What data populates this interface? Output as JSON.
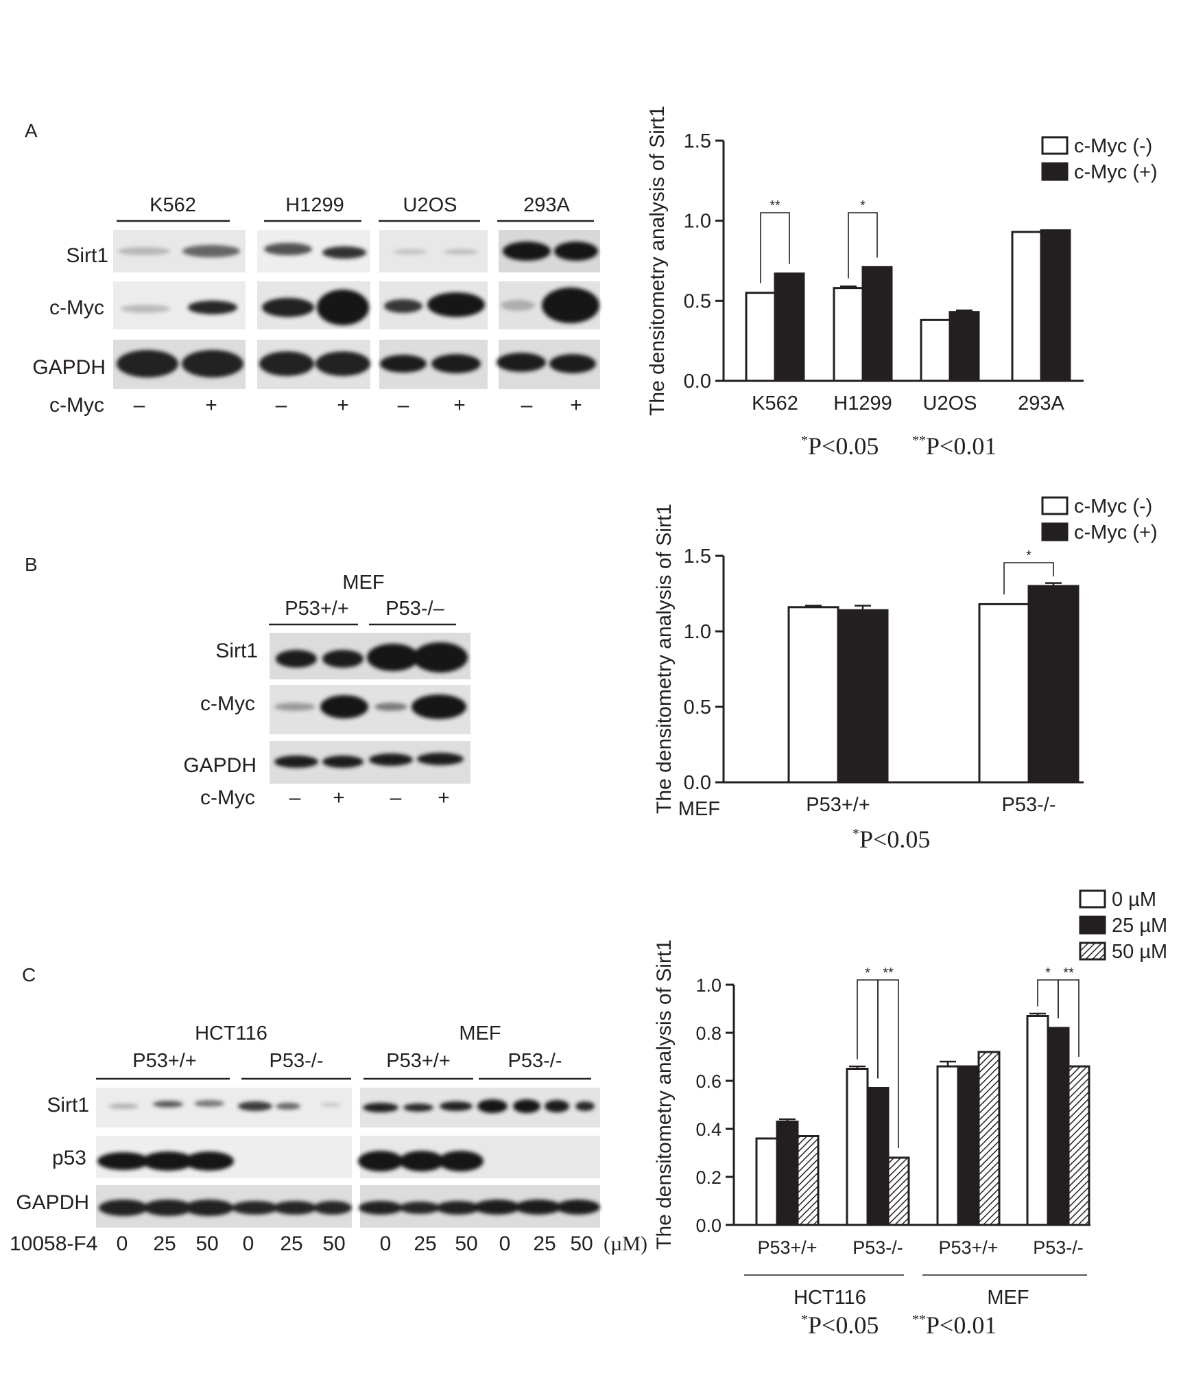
{
  "figure": {
    "panels": [
      {
        "label": "A",
        "blot": {
          "groups": [
            "K562",
            "H1299",
            "U2OS",
            "293A"
          ],
          "rows": [
            "Sirt1",
            "c-Myc",
            "GAPDH"
          ],
          "treatment_label": "c-Myc",
          "lane_signs": [
            "–",
            "+",
            "–",
            "+",
            "–",
            "+",
            "–",
            "+"
          ]
        },
        "footnote": {
          "one_star": "*",
          "one_text": "P<0.05",
          "two_star": "**",
          "two_text": "P<0.01"
        }
      },
      {
        "label": "B",
        "blot": {
          "top_label": "MEF",
          "groups": [
            "P53+/+",
            "P53-/–"
          ],
          "rows": [
            "Sirt1",
            "c-Myc",
            "GAPDH"
          ],
          "treatment_label": "c-Myc",
          "lane_signs": [
            "–",
            "+",
            "–",
            "+"
          ]
        },
        "footnote": {
          "one_star": "*",
          "one_text": "P<0.05"
        }
      },
      {
        "label": "C",
        "blot": {
          "super_groups": [
            "HCT116",
            "MEF"
          ],
          "groups": [
            "P53+/+",
            "P53-/-",
            "P53+/+",
            "P53-/-"
          ],
          "rows": [
            "Sirt1",
            "p53",
            "GAPDH"
          ],
          "treatment_label": "10058-F4",
          "doses": [
            "0",
            "25",
            "50",
            "0",
            "25",
            "50",
            "0",
            "25",
            "50",
            "0",
            "25",
            "50"
          ],
          "unit": "(µM)"
        },
        "footnote": {
          "one_star": "*",
          "one_text": "P<0.05",
          "two_star": "**",
          "two_text": "P<0.01"
        }
      }
    ]
  },
  "chart_data": [
    {
      "type": "bar",
      "ylabel": "The densitometry analysis of Sirt1",
      "xlabel": "",
      "ylim": [
        0,
        1.5
      ],
      "yticks": [
        "0.0",
        "0.5",
        "1.0",
        "1.5"
      ],
      "categories": [
        "K562",
        "H1299",
        "U2OS",
        "293A"
      ],
      "series": [
        {
          "name": "c-Myc (-)",
          "values": [
            0.55,
            0.58,
            0.38,
            0.93
          ],
          "errors": [
            0.0,
            0.01,
            0.0,
            0.0
          ]
        },
        {
          "name": "c-Myc (+)",
          "values": [
            0.67,
            0.71,
            0.43,
            0.94
          ],
          "errors": [
            0.0,
            0.0,
            0.01,
            0.0
          ]
        }
      ],
      "annotations": [
        {
          "category": "K562",
          "text": "**"
        },
        {
          "category": "H1299",
          "text": "*"
        }
      ],
      "legend": "top-right"
    },
    {
      "type": "bar",
      "ylabel": "The densitometry analysis of Sirt1",
      "xlabel": "MEF",
      "ylim": [
        0,
        1.5
      ],
      "yticks": [
        "0.0",
        "0.5",
        "1.0",
        "1.5"
      ],
      "categories": [
        "P53+/+",
        "P53-/-"
      ],
      "series": [
        {
          "name": "c-Myc (-)",
          "values": [
            1.16,
            1.18
          ],
          "errors": [
            0.01,
            0.0
          ]
        },
        {
          "name": "c-Myc (+)",
          "values": [
            1.14,
            1.3
          ],
          "errors": [
            0.03,
            0.02
          ]
        }
      ],
      "annotations": [
        {
          "category": "P53-/-",
          "text": "*"
        }
      ],
      "legend": "top-right"
    },
    {
      "type": "bar",
      "ylabel": "The densitometry analysis of Sirt1",
      "xlabel": "",
      "ylim": [
        0,
        1.0
      ],
      "yticks": [
        "0.0",
        "0.2",
        "0.4",
        "0.6",
        "0.8",
        "1.0"
      ],
      "categories": [
        "P53+/+",
        "P53-/-",
        "P53+/+",
        "P53-/-"
      ],
      "group_labels": [
        "HCT116",
        "MEF"
      ],
      "series": [
        {
          "name": "0 µM",
          "values": [
            0.36,
            0.65,
            0.66,
            0.87
          ],
          "errors": [
            0.0,
            0.01,
            0.02,
            0.01
          ]
        },
        {
          "name": "25 µM",
          "values": [
            0.43,
            0.57,
            0.66,
            0.82
          ],
          "errors": [
            0.01,
            0.0,
            0.0,
            0.0
          ]
        },
        {
          "name": "50 µM",
          "values": [
            0.37,
            0.28,
            0.72,
            0.66
          ],
          "errors": [
            0.0,
            0.0,
            0.0,
            0.0
          ]
        }
      ],
      "annotations": [
        {
          "category": "P53-/-",
          "text": "* **"
        },
        {
          "category": "P53-/-",
          "text": "* **"
        }
      ],
      "legend": "top-right"
    }
  ]
}
